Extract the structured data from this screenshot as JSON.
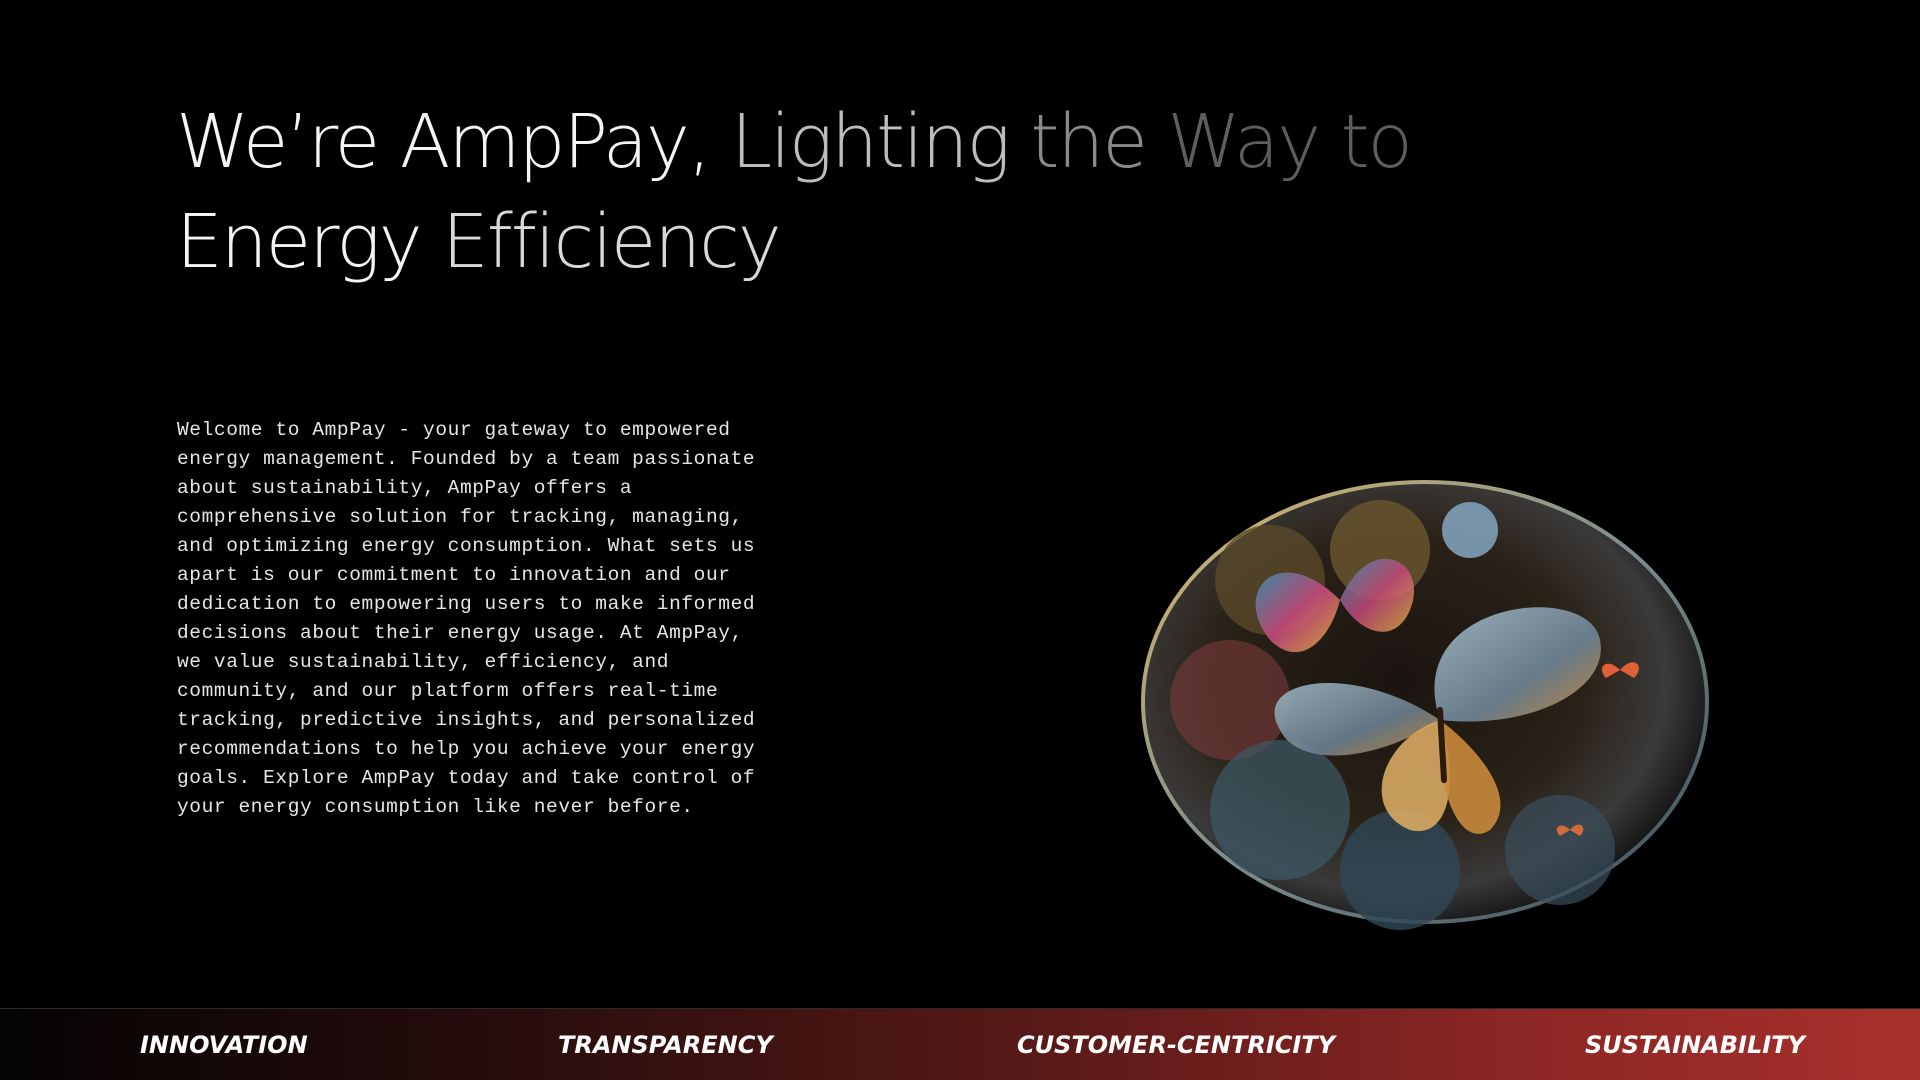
{
  "hero": {
    "title_segments": [
      "We’re AmpPay,",
      "Lighting",
      "the",
      "Way to",
      "Energy",
      "Efficiency"
    ],
    "intro": "Welcome to AmpPay - your gateway to empowered energy management. Founded by a team passionate about sustainability, AmpPay offers a comprehensive solution for tracking, managing, and optimizing energy consumption. What sets us apart is our commitment to innovation and our dedication to empowering users to make informed decisions about their energy usage. At AmpPay, we value sustainability, efficiency, and community, and our platform offers real-time tracking, predictive insights, and personalized recommendations to help you achieve your energy goals. Explore AmpPay today and take control of your energy consumption like never before."
  },
  "values": [
    "INNOVATION",
    "TRANSPARENCY",
    "CUSTOMER-CENTRICITY",
    "SUSTAINABILITY"
  ],
  "colors": {
    "background": "#000000",
    "accent": "#a8302c"
  },
  "art": {
    "icon": "butterfly-sphere-illustration"
  }
}
